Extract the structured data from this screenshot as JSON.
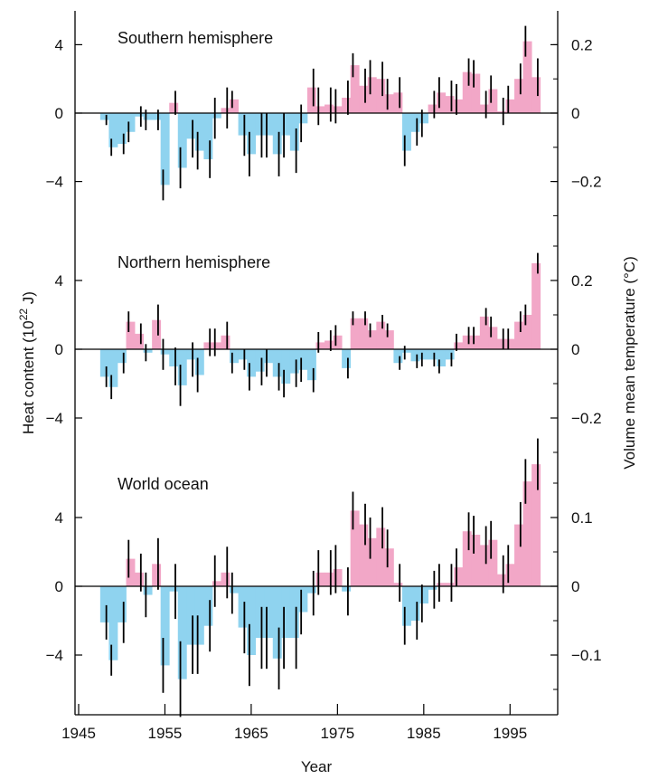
{
  "chart_data": {
    "type": "bar",
    "xlabel": "Year",
    "ylabel_left": "Heat content (10^22 J)",
    "ylabel_right": "Volume mean temperature (°C)",
    "colors": {
      "positive": "#f2a7c7",
      "negative": "#8fd3ef",
      "errorbar": "#000000",
      "axis": "#000000"
    },
    "x_axis": {
      "range": [
        1945,
        2000
      ],
      "ticks": [
        1945,
        1955,
        1965,
        1975,
        1985,
        1995
      ],
      "tick_labels": [
        "1945",
        "1955",
        "1965",
        "1975",
        "1985",
        "1995"
      ]
    },
    "panels": [
      {
        "title": "Southern hemisphere",
        "ylim": [
          -5.5,
          5.9
        ],
        "left_ticks": [
          4,
          0,
          -4
        ],
        "left_tick_labels": [
          "4",
          "0",
          "−4"
        ],
        "right_ticks": [
          0.2,
          0,
          -0.2
        ],
        "right_tick_labels": [
          "0.2",
          "0",
          "−0.2"
        ],
        "right_scale": 20,
        "years": [
          1948,
          1949,
          1950,
          1951,
          1952,
          1953,
          1954,
          1955,
          1956,
          1957,
          1958,
          1959,
          1960,
          1961,
          1962,
          1963,
          1964,
          1965,
          1966,
          1967,
          1968,
          1969,
          1970,
          1971,
          1972,
          1973,
          1974,
          1975,
          1976,
          1977,
          1978,
          1979,
          1980,
          1981,
          1982,
          1983,
          1984,
          1985,
          1986,
          1987,
          1988,
          1989,
          1990,
          1991,
          1992,
          1993,
          1994,
          1995,
          1996,
          1997,
          1998
        ],
        "values": [
          -0.4,
          -2.0,
          -1.8,
          -1.1,
          -0.2,
          -0.4,
          -0.4,
          -4.2,
          0.6,
          -3.2,
          -1.5,
          -2.2,
          -2.7,
          -0.3,
          0.3,
          0.8,
          -1.3,
          -2.4,
          -1.3,
          -1.3,
          -2.4,
          -1.3,
          -2.2,
          -0.6,
          1.5,
          0.4,
          0.5,
          0.4,
          0.9,
          2.8,
          1.6,
          2.1,
          2.0,
          1.1,
          1.2,
          -2.2,
          -1.1,
          -0.6,
          0.5,
          1.2,
          1.0,
          0.8,
          2.4,
          2.3,
          0.5,
          1.4,
          0.1,
          0.8,
          2.0,
          4.2,
          2.1
        ],
        "errors": [
          0.3,
          0.5,
          0.6,
          0.6,
          0.6,
          0.6,
          0.6,
          0.9,
          0.7,
          1.2,
          1.1,
          1.1,
          1.1,
          1.2,
          1.2,
          0.5,
          1.2,
          1.3,
          1.3,
          1.3,
          1.3,
          1.3,
          1.3,
          1.1,
          1.1,
          1.1,
          1.0,
          1.0,
          1.0,
          0.7,
          1.0,
          1.0,
          1.0,
          0.9,
          0.9,
          0.9,
          0.8,
          0.8,
          0.8,
          0.9,
          0.9,
          0.9,
          0.8,
          0.8,
          0.8,
          0.8,
          0.8,
          0.8,
          0.9,
          0.9,
          1.1
        ]
      },
      {
        "title": "Northern hemisphere",
        "ylim": [
          -5.5,
          5.9
        ],
        "left_ticks": [
          4,
          0,
          -4
        ],
        "left_tick_labels": [
          "4",
          "0",
          "−4"
        ],
        "right_ticks": [
          0.2,
          0,
          -0.2
        ],
        "right_tick_labels": [
          "0.2",
          "0",
          "−0.2"
        ],
        "right_scale": 20,
        "years": [
          1948,
          1949,
          1950,
          1951,
          1952,
          1953,
          1954,
          1955,
          1956,
          1957,
          1958,
          1959,
          1960,
          1961,
          1962,
          1963,
          1964,
          1965,
          1966,
          1967,
          1968,
          1969,
          1970,
          1971,
          1972,
          1973,
          1974,
          1975,
          1976,
          1977,
          1978,
          1979,
          1980,
          1981,
          1982,
          1983,
          1984,
          1985,
          1986,
          1987,
          1988,
          1989,
          1990,
          1991,
          1992,
          1993,
          1994,
          1995,
          1996,
          1997,
          1998
        ],
        "values": [
          -1.6,
          -2.2,
          -0.8,
          1.6,
          0.9,
          -0.2,
          1.7,
          -0.3,
          -1.0,
          -2.1,
          -0.6,
          -1.5,
          0.4,
          0.4,
          0.8,
          -0.8,
          -0.6,
          -1.6,
          -1.3,
          -0.8,
          -1.6,
          -2.0,
          -1.4,
          -1.2,
          -1.8,
          0.4,
          0.5,
          0.8,
          -1.1,
          1.8,
          1.8,
          1.1,
          1.6,
          1.1,
          -0.8,
          -0.2,
          -0.7,
          -0.6,
          -0.6,
          -1.0,
          -0.6,
          0.4,
          0.8,
          0.8,
          1.9,
          1.3,
          0.6,
          0.6,
          1.6,
          2.0,
          5.0
        ],
        "errors": [
          0.6,
          0.7,
          0.6,
          0.6,
          0.6,
          0.5,
          0.9,
          0.9,
          1.1,
          1.2,
          1.0,
          1.0,
          0.8,
          0.8,
          0.8,
          0.6,
          0.6,
          0.8,
          0.8,
          0.8,
          0.8,
          0.8,
          0.8,
          0.7,
          0.7,
          0.6,
          0.6,
          0.6,
          0.6,
          0.4,
          0.4,
          0.4,
          0.4,
          0.4,
          0.4,
          0.4,
          0.4,
          0.4,
          0.4,
          0.4,
          0.4,
          0.5,
          0.5,
          0.5,
          0.5,
          0.6,
          0.6,
          0.6,
          0.6,
          0.6,
          0.6
        ]
      },
      {
        "title": "World ocean",
        "ylim": [
          -7.3,
          8.9
        ],
        "left_ticks": [
          4,
          0,
          -4
        ],
        "left_tick_labels": [
          "4",
          "0",
          "−4"
        ],
        "right_ticks": [
          0.1,
          0,
          -0.1
        ],
        "right_tick_labels": [
          "0.1",
          "0",
          "−0.1"
        ],
        "right_scale": 40,
        "years": [
          1948,
          1949,
          1950,
          1951,
          1952,
          1953,
          1954,
          1955,
          1956,
          1957,
          1958,
          1959,
          1960,
          1961,
          1962,
          1963,
          1964,
          1965,
          1966,
          1967,
          1968,
          1969,
          1970,
          1971,
          1972,
          1973,
          1974,
          1975,
          1976,
          1977,
          1978,
          1979,
          1980,
          1981,
          1982,
          1983,
          1984,
          1985,
          1986,
          1987,
          1988,
          1989,
          1990,
          1991,
          1992,
          1993,
          1994,
          1995,
          1996,
          1997,
          1998
        ],
        "values": [
          -2.1,
          -4.3,
          -2.1,
          1.6,
          0.8,
          -0.5,
          1.3,
          -4.6,
          -0.3,
          -5.4,
          -3.4,
          -3.4,
          -2.3,
          0.3,
          0.8,
          -0.4,
          -2.4,
          -4.0,
          -3.0,
          -3.0,
          -4.2,
          -3.0,
          -3.0,
          -1.5,
          -0.4,
          0.8,
          0.8,
          1.0,
          -0.3,
          4.4,
          3.6,
          2.8,
          3.4,
          2.2,
          0.2,
          -2.3,
          -2.0,
          -1.0,
          -0.2,
          0.2,
          0.2,
          1.1,
          3.2,
          3.0,
          2.4,
          2.7,
          0.7,
          1.3,
          3.6,
          6.1,
          7.1
        ],
        "errors": [
          1.0,
          0.9,
          1.2,
          1.1,
          1.1,
          1.3,
          1.5,
          1.6,
          1.6,
          2.2,
          1.7,
          1.7,
          1.5,
          1.5,
          1.5,
          1.2,
          1.5,
          1.8,
          1.8,
          1.8,
          1.8,
          1.8,
          1.8,
          1.3,
          1.3,
          1.3,
          1.3,
          1.4,
          1.4,
          1.1,
          1.2,
          1.2,
          1.2,
          1.1,
          1.1,
          1.1,
          1.1,
          1.1,
          1.1,
          1.1,
          1.1,
          1.1,
          1.1,
          1.1,
          1.1,
          1.1,
          1.1,
          1.1,
          1.3,
          1.3,
          1.5
        ]
      }
    ]
  }
}
